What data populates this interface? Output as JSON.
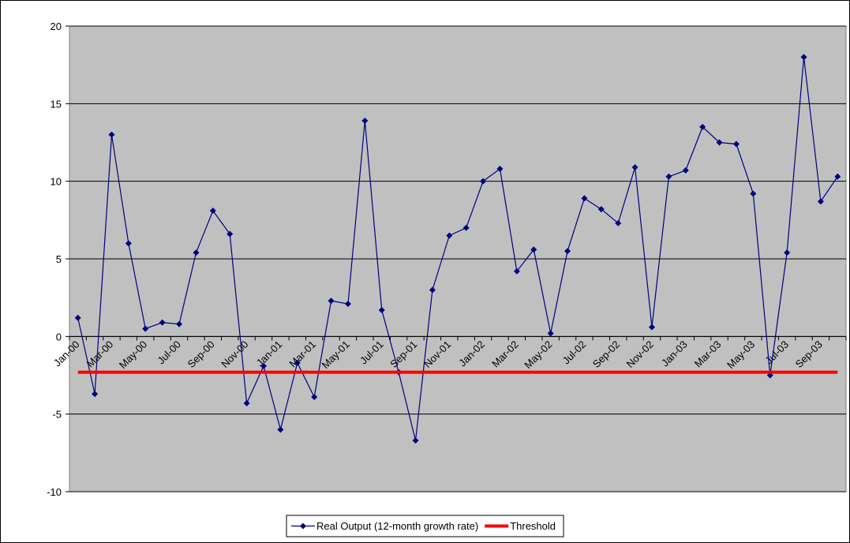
{
  "chart_data": {
    "type": "line",
    "categories": [
      "Jan-00",
      null,
      "Mar-00",
      null,
      "May-00",
      null,
      "Jul-00",
      null,
      "Sep-00",
      null,
      "Nov-00",
      null,
      "Jan-01",
      null,
      "Mar-01",
      null,
      "May-01",
      null,
      "Jul-01",
      null,
      "Sep-01",
      null,
      "Nov-01",
      null,
      "Jan-02",
      null,
      "Mar-02",
      null,
      "May-02",
      null,
      "Jul-02",
      null,
      "Sep-02",
      null,
      "Nov-02",
      null,
      "Jan-03",
      null,
      "Mar-03",
      null,
      "May-03",
      null,
      "Jul-03",
      null,
      "Sep-03",
      null
    ],
    "series": [
      {
        "name": "Real Output (12-month growth rate)",
        "color": "#000080",
        "marker": "diamond",
        "values": [
          1.2,
          -3.7,
          13.0,
          6.0,
          0.5,
          0.9,
          0.8,
          5.4,
          8.1,
          6.6,
          -4.3,
          -1.9,
          -6.0,
          -1.7,
          -3.9,
          2.3,
          2.1,
          13.9,
          1.7,
          -2.3,
          -6.7,
          3.0,
          6.5,
          7.0,
          10.0,
          10.8,
          4.2,
          5.6,
          0.2,
          5.5,
          8.9,
          8.2,
          7.3,
          10.9,
          0.6,
          10.3,
          10.7,
          13.5,
          12.5,
          12.4,
          9.2,
          -2.5,
          5.4,
          18.0,
          8.7,
          10.3
        ]
      },
      {
        "name": "Threshold",
        "color": "#ff0000",
        "values": [
          -2.3,
          -2.3,
          -2.3,
          -2.3,
          -2.3,
          -2.3,
          -2.3,
          -2.3,
          -2.3,
          -2.3,
          -2.3,
          -2.3,
          -2.3,
          -2.3,
          -2.3,
          -2.3,
          -2.3,
          -2.3,
          -2.3,
          -2.3,
          -2.3,
          -2.3,
          -2.3,
          -2.3,
          -2.3,
          -2.3,
          -2.3,
          -2.3,
          -2.3,
          -2.3,
          -2.3,
          -2.3,
          -2.3,
          -2.3,
          -2.3,
          -2.3,
          -2.3,
          -2.3,
          -2.3,
          -2.3,
          -2.3,
          -2.3,
          -2.3,
          -2.3,
          -2.3,
          -2.3
        ]
      }
    ],
    "ylim": [
      -10,
      20
    ],
    "yticks": [
      -10,
      -5,
      0,
      5,
      10,
      15,
      20
    ],
    "grid": true,
    "legend": "bottom"
  }
}
